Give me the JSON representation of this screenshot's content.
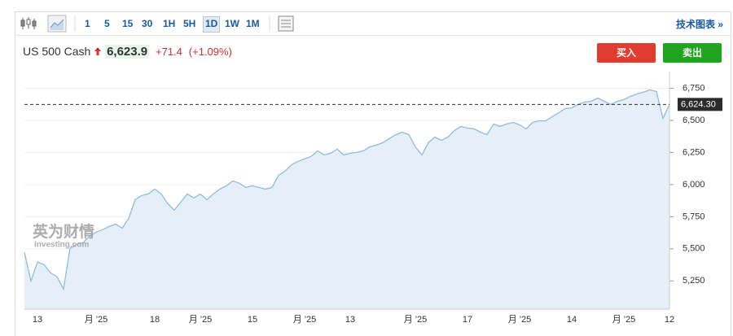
{
  "toolbar": {
    "intervals": [
      "1",
      "5",
      "15",
      "30",
      "1H",
      "5H",
      "1D",
      "1W",
      "1M"
    ],
    "active": "1D",
    "link": "技术图表 »"
  },
  "instrument": {
    "name": "US 500 Cash",
    "price": "6,623.9",
    "change": "+71.4",
    "change_pct": "(+1.09%)"
  },
  "buttons": {
    "buy": "买入",
    "sell": "卖出"
  },
  "watermark": {
    "brand": "英为财情",
    "site": "Investing.com"
  },
  "chart_data": {
    "type": "area",
    "categories": [
      null,
      null,
      "13",
      null,
      null,
      null,
      null,
      null,
      null,
      null,
      null,
      "月 '25",
      null,
      null,
      null,
      null,
      null,
      null,
      null,
      null,
      "18",
      null,
      null,
      null,
      null,
      null,
      null,
      "月 '25",
      null,
      null,
      null,
      null,
      null,
      null,
      null,
      "15",
      null,
      null,
      null,
      null,
      null,
      null,
      null,
      "月 '25",
      null,
      null,
      null,
      null,
      null,
      null,
      "13",
      null,
      null,
      null,
      null,
      null,
      null,
      null,
      null,
      null,
      "月 '25",
      null,
      null,
      null,
      null,
      null,
      null,
      null,
      "17",
      null,
      null,
      null,
      null,
      null,
      null,
      null,
      "月 '25",
      null,
      null,
      null,
      null,
      null,
      null,
      null,
      "14",
      null,
      null,
      null,
      null,
      null,
      null,
      null,
      "月 '25",
      null,
      null,
      null,
      null,
      null,
      null,
      "12"
    ],
    "values": [
      5472,
      5250,
      5396,
      5377,
      5313,
      5282,
      5187,
      5503,
      5535,
      5548,
      5598,
      5630,
      5649,
      5674,
      5693,
      5661,
      5737,
      5883,
      5915,
      5927,
      5965,
      5927,
      5851,
      5801,
      5864,
      5927,
      5896,
      5927,
      5883,
      5927,
      5965,
      5991,
      6029,
      6010,
      5978,
      5991,
      5978,
      5965,
      5978,
      6073,
      6105,
      6155,
      6181,
      6200,
      6219,
      6263,
      6231,
      6244,
      6276,
      6231,
      6244,
      6250,
      6263,
      6294,
      6307,
      6326,
      6358,
      6389,
      6408,
      6389,
      6294,
      6231,
      6326,
      6370,
      6345,
      6370,
      6421,
      6453,
      6440,
      6434,
      6408,
      6389,
      6472,
      6453,
      6472,
      6484,
      6465,
      6434,
      6484,
      6497,
      6497,
      6529,
      6560,
      6592,
      6598,
      6624,
      6643,
      6649,
      6674,
      6649,
      6624,
      6649,
      6662,
      6687,
      6706,
      6719,
      6738,
      6725,
      6516,
      6624.3
    ],
    "color": "#8dbde0",
    "area_color": "#e6eef7",
    "ylim": [
      5030,
      6880
    ],
    "yticks": [
      {
        "value": 5250,
        "label": "5,250"
      },
      {
        "value": 5500,
        "label": "5,500"
      },
      {
        "value": 5750,
        "label": "5,750"
      },
      {
        "value": 6000,
        "label": "6,000"
      },
      {
        "value": 6250,
        "label": "6,250"
      },
      {
        "value": 6500,
        "label": "6,500"
      },
      {
        "value": 6750,
        "label": "6,750"
      }
    ],
    "last_label": {
      "value": 6624.3,
      "label": "6,624.30"
    },
    "grid": true
  }
}
